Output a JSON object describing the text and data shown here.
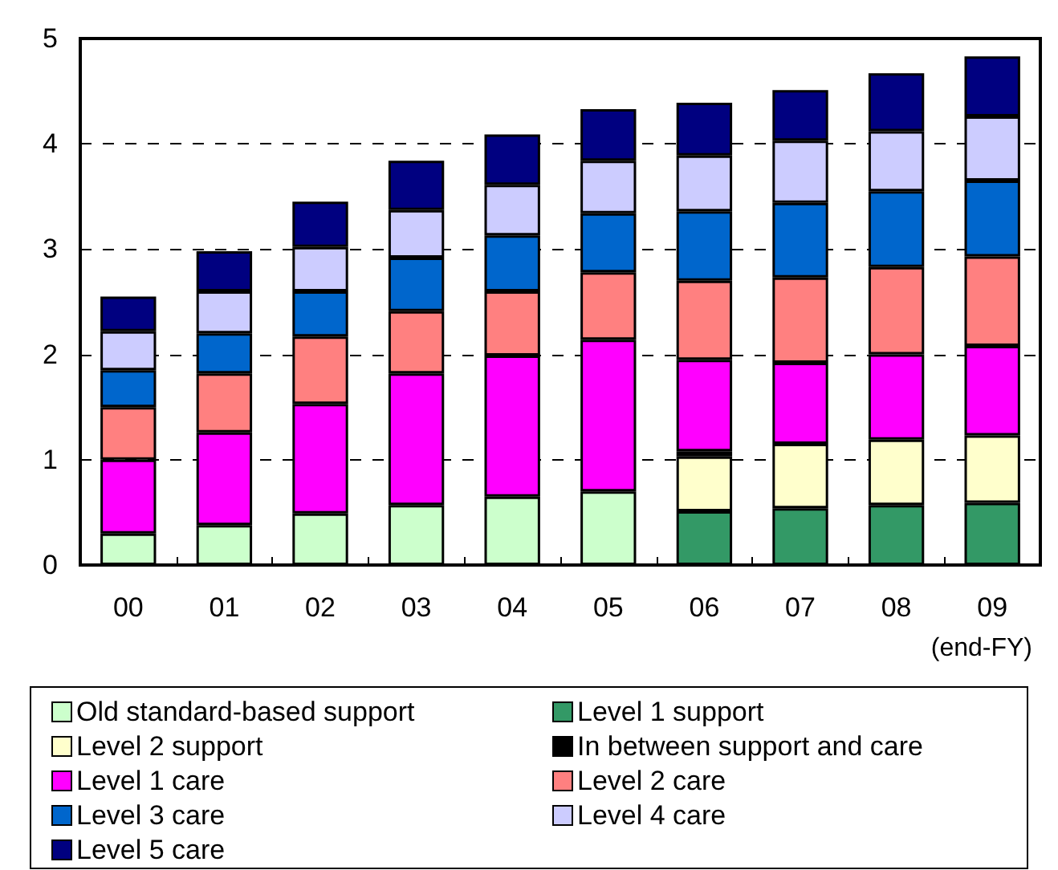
{
  "chart_data": {
    "type": "bar",
    "stacked": true,
    "xlabel": "(end-FY)",
    "categories": [
      "00",
      "01",
      "02",
      "03",
      "04",
      "05",
      "06",
      "07",
      "08",
      "09"
    ],
    "ylim": [
      0,
      5
    ],
    "yticks": [
      0,
      1,
      2,
      3,
      4,
      5
    ],
    "grid": "y",
    "legend": "bottom",
    "series": [
      {
        "name": "Old standard-based support",
        "color": "#ccffcc",
        "values": [
          0.3,
          0.38,
          0.49,
          0.57,
          0.65,
          0.7,
          null,
          null,
          null,
          null
        ]
      },
      {
        "name": "Level 1 support",
        "color": "#339966",
        "values": [
          null,
          null,
          null,
          null,
          null,
          null,
          0.51,
          0.54,
          0.57,
          0.59
        ]
      },
      {
        "name": "Level 2 support",
        "color": "#ffffcc",
        "values": [
          null,
          null,
          null,
          null,
          null,
          null,
          0.52,
          0.61,
          0.62,
          0.64
        ]
      },
      {
        "name": "In between support and care",
        "color": "#000000",
        "values": [
          null,
          null,
          null,
          null,
          null,
          null,
          0.05,
          null,
          null,
          null
        ]
      },
      {
        "name": "Level 1 care",
        "color": "#ff00ff",
        "values": [
          0.7,
          0.88,
          1.04,
          1.25,
          1.34,
          1.44,
          0.87,
          0.77,
          0.81,
          0.85
        ]
      },
      {
        "name": "Level 2 care",
        "color": "#ff8080",
        "values": [
          0.5,
          0.56,
          0.64,
          0.59,
          0.61,
          0.64,
          0.75,
          0.81,
          0.83,
          0.85
        ]
      },
      {
        "name": "Level 3 care",
        "color": "#0066cc",
        "values": [
          0.35,
          0.38,
          0.43,
          0.51,
          0.53,
          0.56,
          0.66,
          0.71,
          0.72,
          0.72
        ]
      },
      {
        "name": "Level 4 care",
        "color": "#ccccff",
        "values": [
          0.37,
          0.4,
          0.42,
          0.45,
          0.48,
          0.5,
          0.53,
          0.59,
          0.57,
          0.61
        ]
      },
      {
        "name": "Level 5 care",
        "color": "#000080",
        "values": [
          0.33,
          0.38,
          0.43,
          0.47,
          0.48,
          0.49,
          0.5,
          0.48,
          0.55,
          0.57
        ]
      }
    ]
  }
}
